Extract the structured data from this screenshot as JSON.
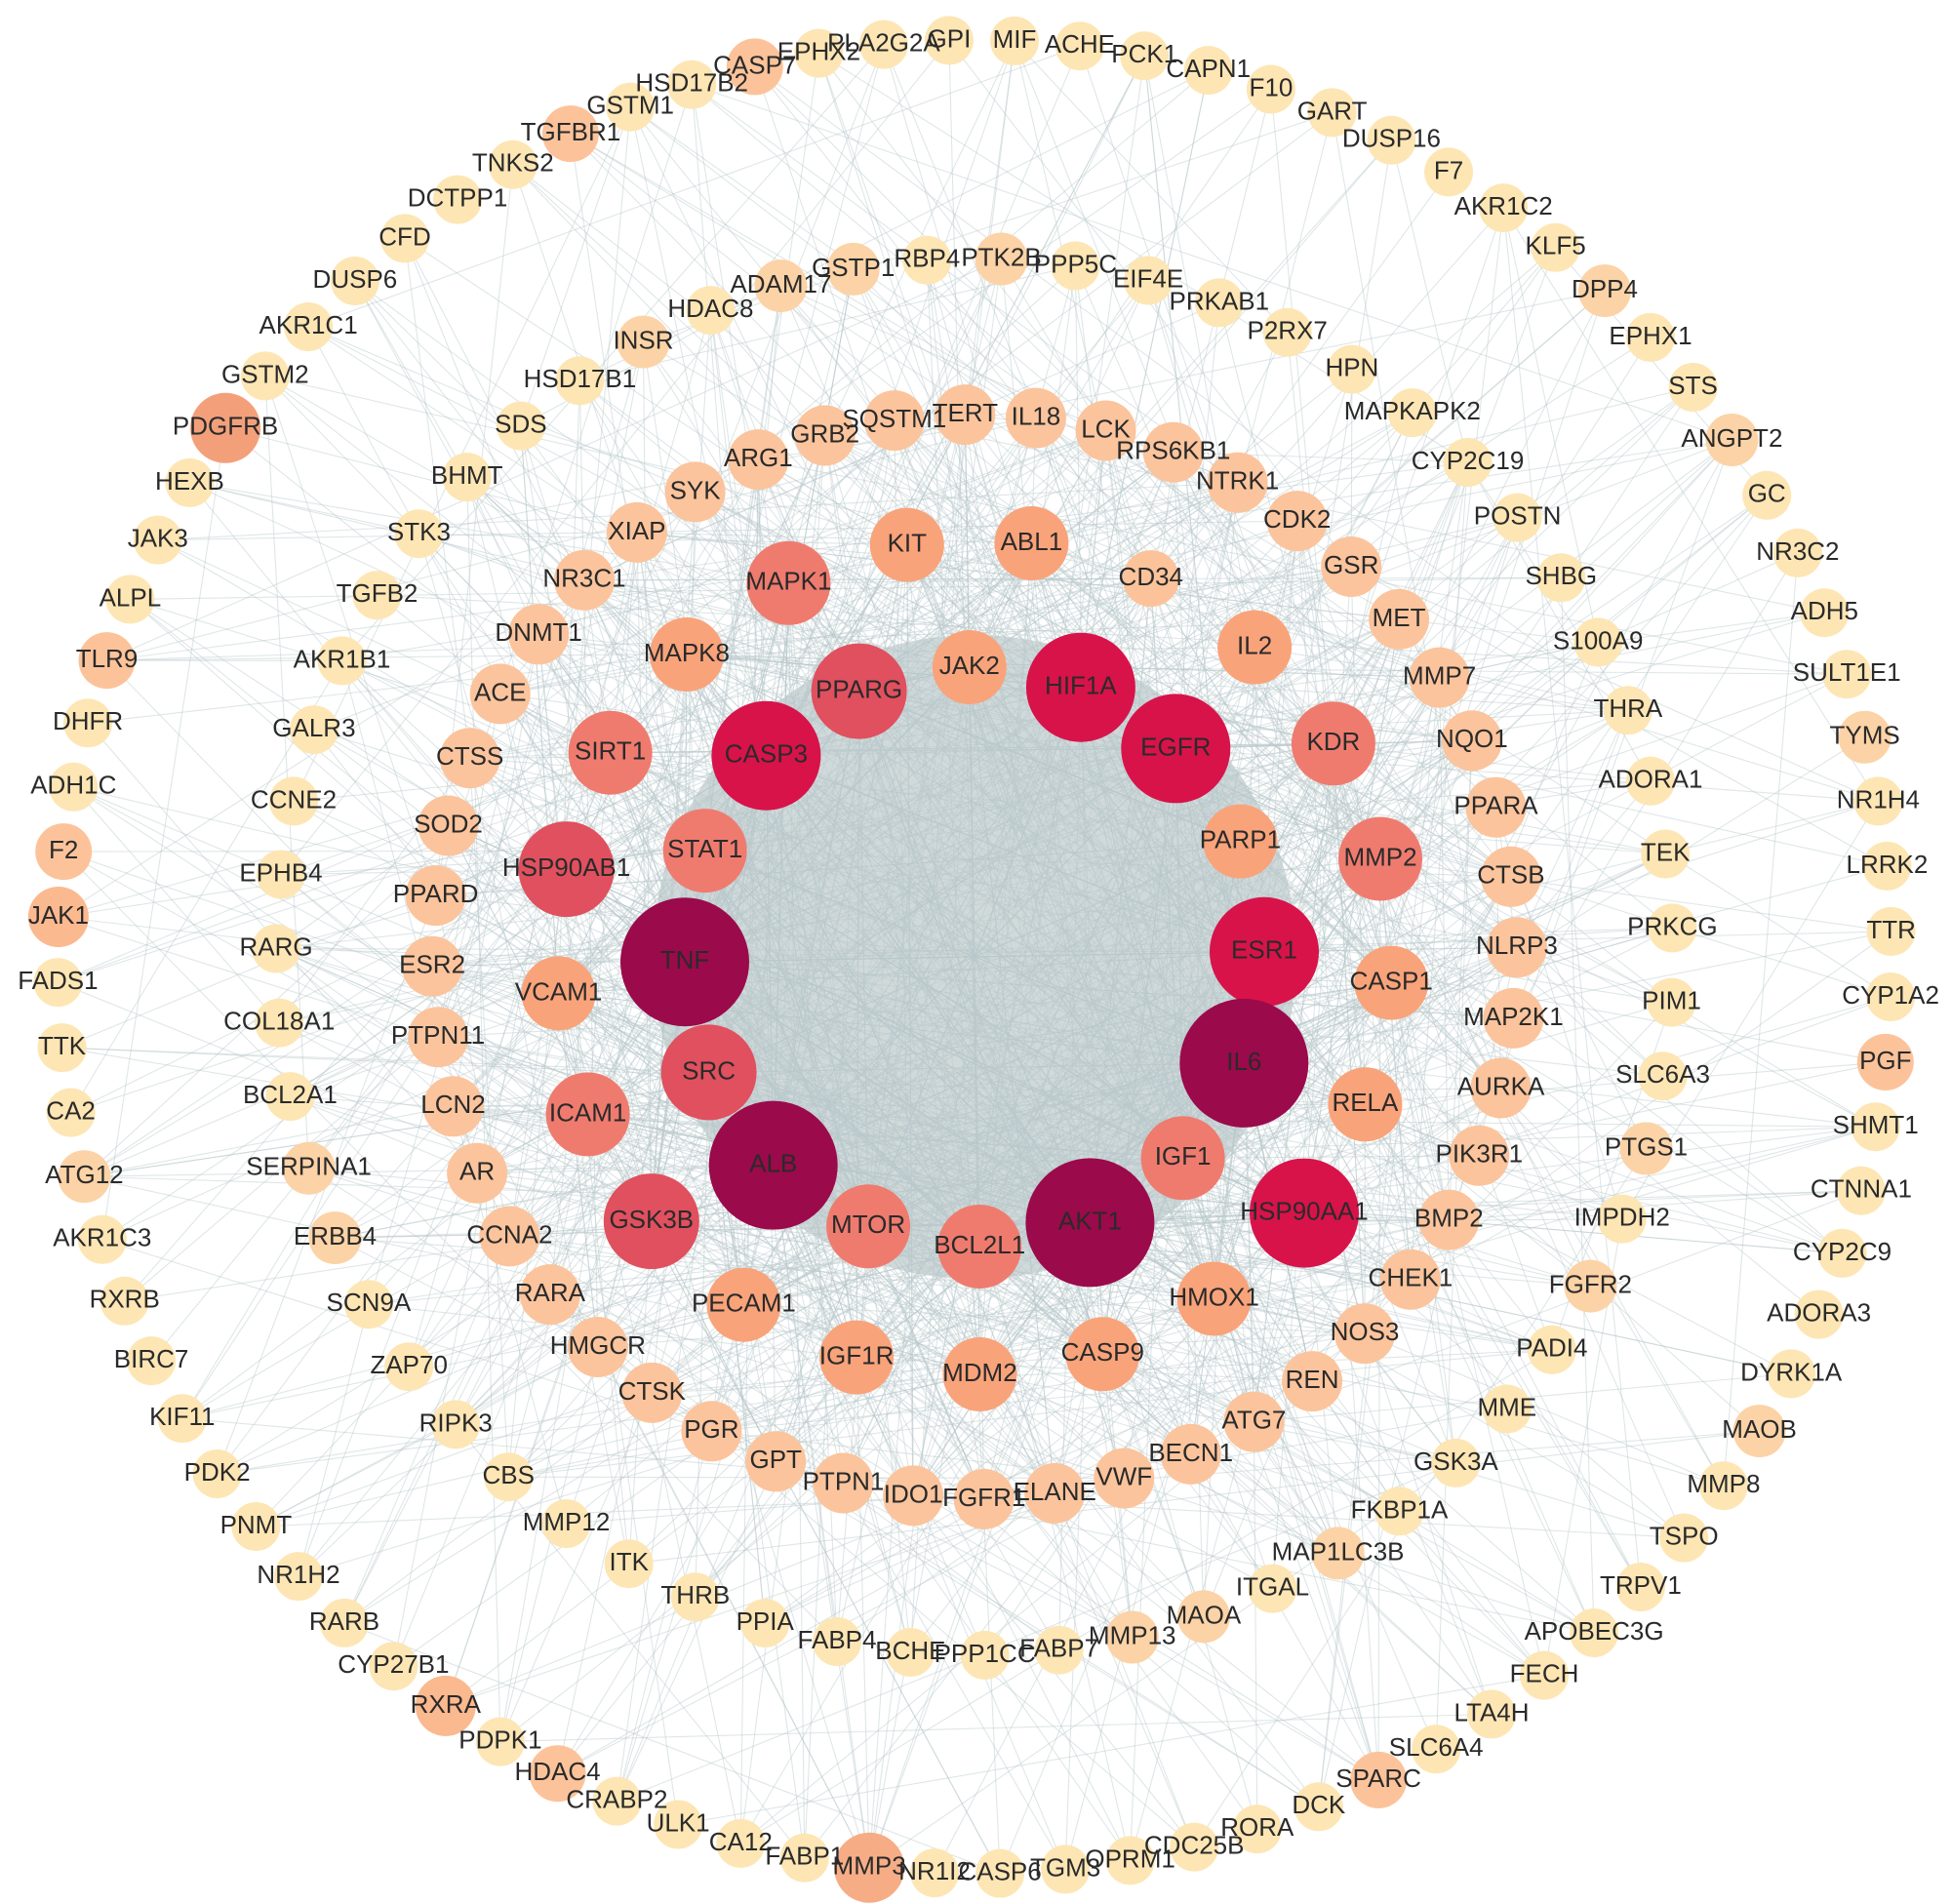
{
  "rings": [
    {
      "color": "#fde6b4",
      "nodes": [
        "MIF",
        "ACHE",
        "PCK1",
        "CAPN1",
        "F10",
        "GART",
        "DUSP16",
        "F7",
        "AKR1C2",
        "KLF5",
        {
          "label": "DPP4",
          "color": "#fcd3a6"
        },
        "EPHX1",
        "STS",
        {
          "label": "ANGPT2",
          "color": "#fcd3a6"
        },
        "GC",
        "NR3C2",
        "ADH5",
        "SULT1E1",
        {
          "label": "TYMS",
          "color": "#fcd3a6"
        },
        "NR1H4",
        "LRRK2",
        "TTR",
        "CYP1A2",
        {
          "label": "PGF",
          "color": "#fcc39a"
        },
        "SHMT1",
        "CTNNA1",
        "CYP2C9",
        "ADORA3",
        "DYRK1A",
        {
          "label": "MAOB",
          "color": "#fcd3a6"
        },
        "MMP8",
        "TSPO",
        "TRPV1",
        "APOBEC3G",
        "FECH",
        "LTA4H",
        "SLC6A4",
        {
          "label": "SPARC",
          "color": "#fcc39a"
        },
        "DCK",
        "RORA",
        "CDC25B",
        "OPRM1",
        "TGM3",
        "CASP6",
        "NR1I2",
        {
          "label": "MMP3",
          "color": "#f6ad86"
        },
        "FABP1",
        "CA12",
        "ULK1",
        "CRABP2",
        {
          "label": "HDAC4",
          "color": "#fcc39a"
        },
        "PDPK1",
        {
          "label": "RXRA",
          "color": "#fbb98f"
        },
        "CYP27B1",
        "RARB",
        "NR1H2",
        "PNMT",
        "PDK2",
        "KIF11",
        "BIRC7",
        "RXRB",
        "AKR1C3",
        {
          "label": "ATG12",
          "color": "#fcd3a6"
        },
        "CA2",
        "TTK",
        "FADS1",
        {
          "label": "JAK1",
          "color": "#fbb98f"
        },
        {
          "label": "F2",
          "color": "#fcc39a"
        },
        "ADH1C",
        "DHFR",
        {
          "label": "TLR9",
          "color": "#fcc39a"
        },
        "ALPL",
        "JAK3",
        "HEXB",
        {
          "label": "PDGFRB",
          "color": "#f3a07a"
        },
        "GSTM2",
        "AKR1C1",
        "DUSP6",
        "CFD",
        "DCTPP1",
        "TNKS2",
        {
          "label": "TGFBR1",
          "color": "#fcc39a"
        },
        "GSTM1",
        "HSD17B2",
        {
          "label": "CASP7",
          "color": "#fcc39a"
        },
        "EPHX2",
        "PLA2G2A",
        "GPI"
      ]
    },
    {
      "color": "#fde6b4",
      "nodes": [
        {
          "label": "GSTP1",
          "color": "#fcd3a6"
        },
        "RBP4",
        {
          "label": "PTK2B",
          "color": "#fcd3a6"
        },
        "PPP5C",
        "EIF4E",
        "PRKAB1",
        "P2RX7",
        "HPN",
        "MAPKAPK2",
        "CYP2C19",
        "POSTN",
        "SHBG",
        "S100A9",
        "THRA",
        "ADORA1",
        "TEK",
        "PRKCG",
        "PIM1",
        "SLC6A3",
        {
          "label": "PTGS1",
          "color": "#fcd3a6"
        },
        "IMPDH2",
        {
          "label": "FGFR2",
          "color": "#fcd3a6"
        },
        "PADI4",
        "MME",
        "GSK3A",
        "FKBP1A",
        {
          "label": "MAP1LC3B",
          "color": "#fcd3a6"
        },
        "ITGAL",
        {
          "label": "MAOA",
          "color": "#fcd3a6"
        },
        {
          "label": "MMP13",
          "color": "#fcd3a6"
        },
        "FABP7",
        "PPP1CC",
        "BCHE",
        "FABP4",
        "PPIA",
        "THRB",
        "ITK",
        "MMP12",
        "CBS",
        "RIPK3",
        "ZAP70",
        "SCN9A",
        {
          "label": "ERBB4",
          "color": "#fcd3a6"
        },
        {
          "label": "SERPINA1",
          "color": "#fcd3a6"
        },
        "BCL2A1",
        "COL18A1",
        "RARG",
        "EPHB4",
        "CCNE2",
        "GALR3",
        "AKR1B1",
        "TGFB2",
        "STK3",
        "BHMT",
        "SDS",
        "HSD17B1",
        {
          "label": "INSR",
          "color": "#fcd3a6"
        },
        "HDAC8",
        {
          "label": "ADAM17",
          "color": "#fcd3a6"
        }
      ]
    },
    {
      "color": "#fbc49c",
      "nodes": [
        "SQSTM1",
        "TERT",
        "IL18",
        "LCK",
        "RPS6KB1",
        "NTRK1",
        "CDK2",
        "GSR",
        "MET",
        "MMP7",
        "NQO1",
        "PPARA",
        "CTSB",
        "NLRP3",
        "MAP2K1",
        "AURKA",
        "PIK3R1",
        "BMP2",
        "CHEK1",
        "NOS3",
        "REN",
        "ATG7",
        "BECN1",
        "VWF",
        "ELANE",
        "FGFR1",
        "IDO1",
        "PTPN1",
        "GPT",
        "PGR",
        "CTSK",
        "HMGCR",
        "RARA",
        "CCNA2",
        "AR",
        "LCN2",
        "PTPN11",
        "ESR2",
        "PPARD",
        "SOD2",
        "CTSS",
        "ACE",
        "DNMT1",
        "NR3C1",
        "XIAP",
        "SYK",
        "ARG1",
        "GRB2"
      ]
    },
    {
      "color": "#f9a37a",
      "nodes": [
        "KIT",
        "ABL1",
        {
          "label": "CD34",
          "color": "#fcc39a"
        },
        "IL2",
        {
          "label": "KDR",
          "color": "#ef7b6f"
        },
        {
          "label": "MMP2",
          "color": "#ef7b6f"
        },
        "CASP1",
        "RELA",
        {
          "label": "HSP90AA1",
          "color": "#d8134a"
        },
        "HMOX1",
        "CASP9",
        "MDM2",
        "IGF1R",
        "PECAM1",
        {
          "label": "GSK3B",
          "color": "#e0505e"
        },
        {
          "label": "ICAM1",
          "color": "#ef7b6f"
        },
        "VCAM1",
        {
          "label": "HSP90AB1",
          "color": "#e0505e"
        },
        {
          "label": "SIRT1",
          "color": "#ef7b6f"
        },
        "MAPK8",
        {
          "label": "MAPK1",
          "color": "#ef7b6f"
        }
      ]
    },
    {
      "color": "#ef7b6f",
      "nodes": [
        {
          "label": "JAK2",
          "color": "#f9a37a"
        },
        {
          "label": "HIF1A",
          "color": "#d8134a"
        },
        {
          "label": "EGFR",
          "color": "#d8134a"
        },
        {
          "label": "PARP1",
          "color": "#f9a37a"
        },
        {
          "label": "ESR1",
          "color": "#d8134a"
        },
        {
          "label": "IL6",
          "color": "#9b0a4b"
        },
        "IGF1",
        {
          "label": "AKT1",
          "color": "#9b0a4b"
        },
        "BCL2L1",
        "MTOR",
        {
          "label": "ALB",
          "color": "#9b0a4b"
        },
        {
          "label": "SRC",
          "color": "#e0505e"
        },
        {
          "label": "TNF",
          "color": "#9b0a4b"
        },
        "STAT1",
        {
          "label": "CASP3",
          "color": "#d8134a"
        },
        {
          "label": "PPARG",
          "color": "#e0505e"
        }
      ]
    }
  ]
}
